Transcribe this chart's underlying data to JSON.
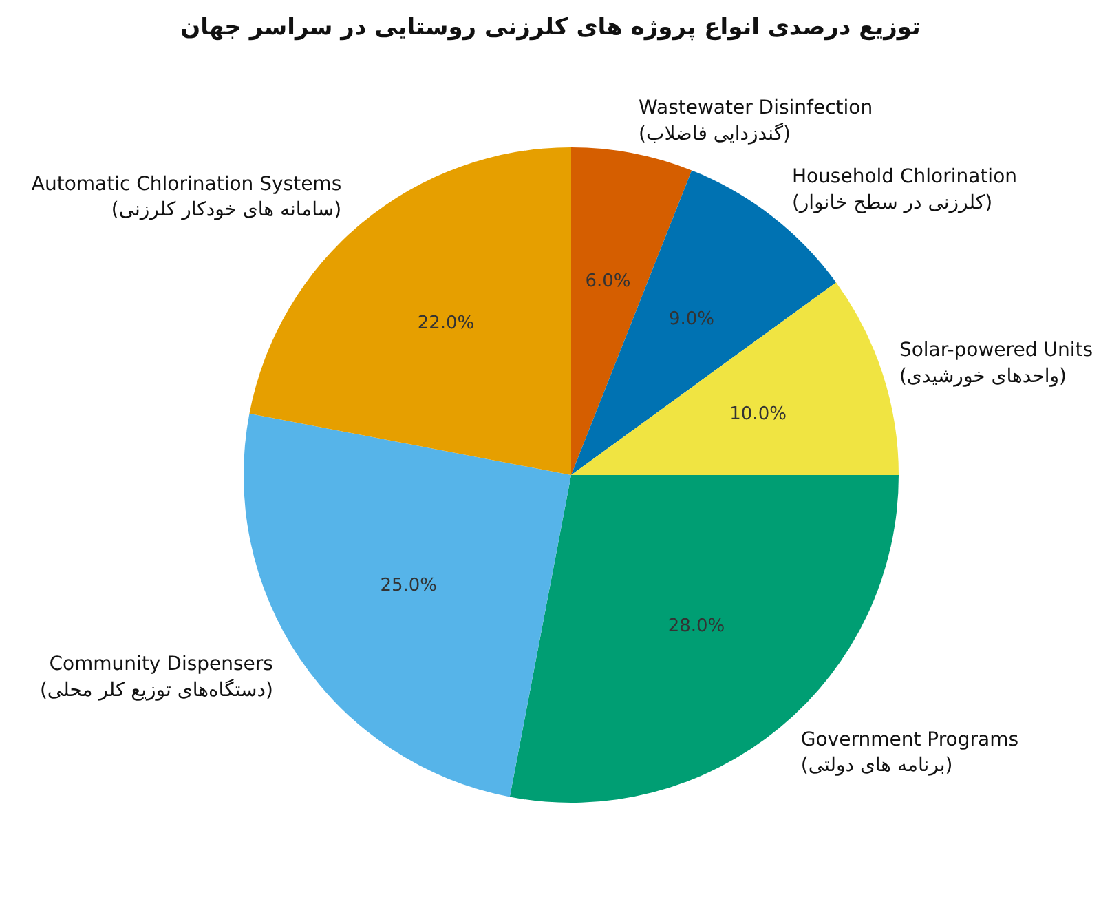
{
  "chart_data": {
    "type": "pie",
    "title": "توزیع درصدی انواع پروژه های کلرزنی روستایی در سراسر جهان",
    "categories": [
      "Wastewater Disinfection\n(گندزدایی فاضلاب)",
      "Household Chlorination\n(کلرزنی در سطح خانوار)",
      "Solar-powered Units\n(واحدهای خورشیدی)",
      "Government Programs\n(برنامه های دولتی)",
      "Community Dispensers\n(دستگاه‌های توزیع کلر محلی)",
      "Automatic Chlorination Systems\n(سامانه های خودکار کلرزنی)"
    ],
    "values": [
      6,
      9,
      10,
      28,
      25,
      22
    ],
    "value_labels": [
      "6.0%",
      "9.0%",
      "10.0%",
      "28.0%",
      "25.0%",
      "22.0%"
    ],
    "colors": [
      "#d55e00",
      "#0072b2",
      "#f0e442",
      "#009e73",
      "#56b4e9",
      "#e69f00"
    ]
  }
}
